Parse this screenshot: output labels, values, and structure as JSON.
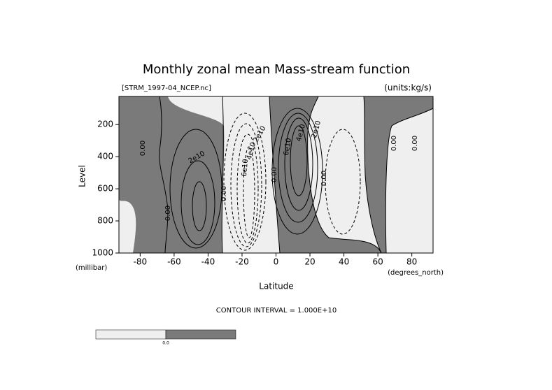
{
  "chart_data": {
    "type": "contour",
    "title": "Monthly zonal mean Mass-stream function",
    "subtitle": "[STRM_1997-04_NCEP.nc]",
    "units": "(units:kg/s)",
    "y_label": "Level",
    "y_unit": "(millibar)",
    "x_label": "Latitude",
    "x_unit": "(degrees_north)",
    "contour_interval": "CONTOUR INTERVAL = 1.000E+10",
    "contour_labels": [
      "0.00",
      "2e10",
      "0.00",
      "0.00",
      "2e10",
      "4e10",
      "6e10",
      "0.00",
      "6e10",
      "4e10",
      "2e10",
      "0.00",
      "0.00",
      "0.00"
    ],
    "colorbar_label": "0.0",
    "colors": {
      "negative": "#efefef",
      "positive": "#7a7a7a"
    },
    "xlim": [
      -92.5,
      92.5
    ],
    "ylim": [
      1000,
      25
    ],
    "xticks": [
      -80,
      -60,
      -40,
      -20,
      0,
      20,
      40,
      60,
      80
    ],
    "yticks": [
      200,
      400,
      600,
      800,
      1000
    ]
  }
}
